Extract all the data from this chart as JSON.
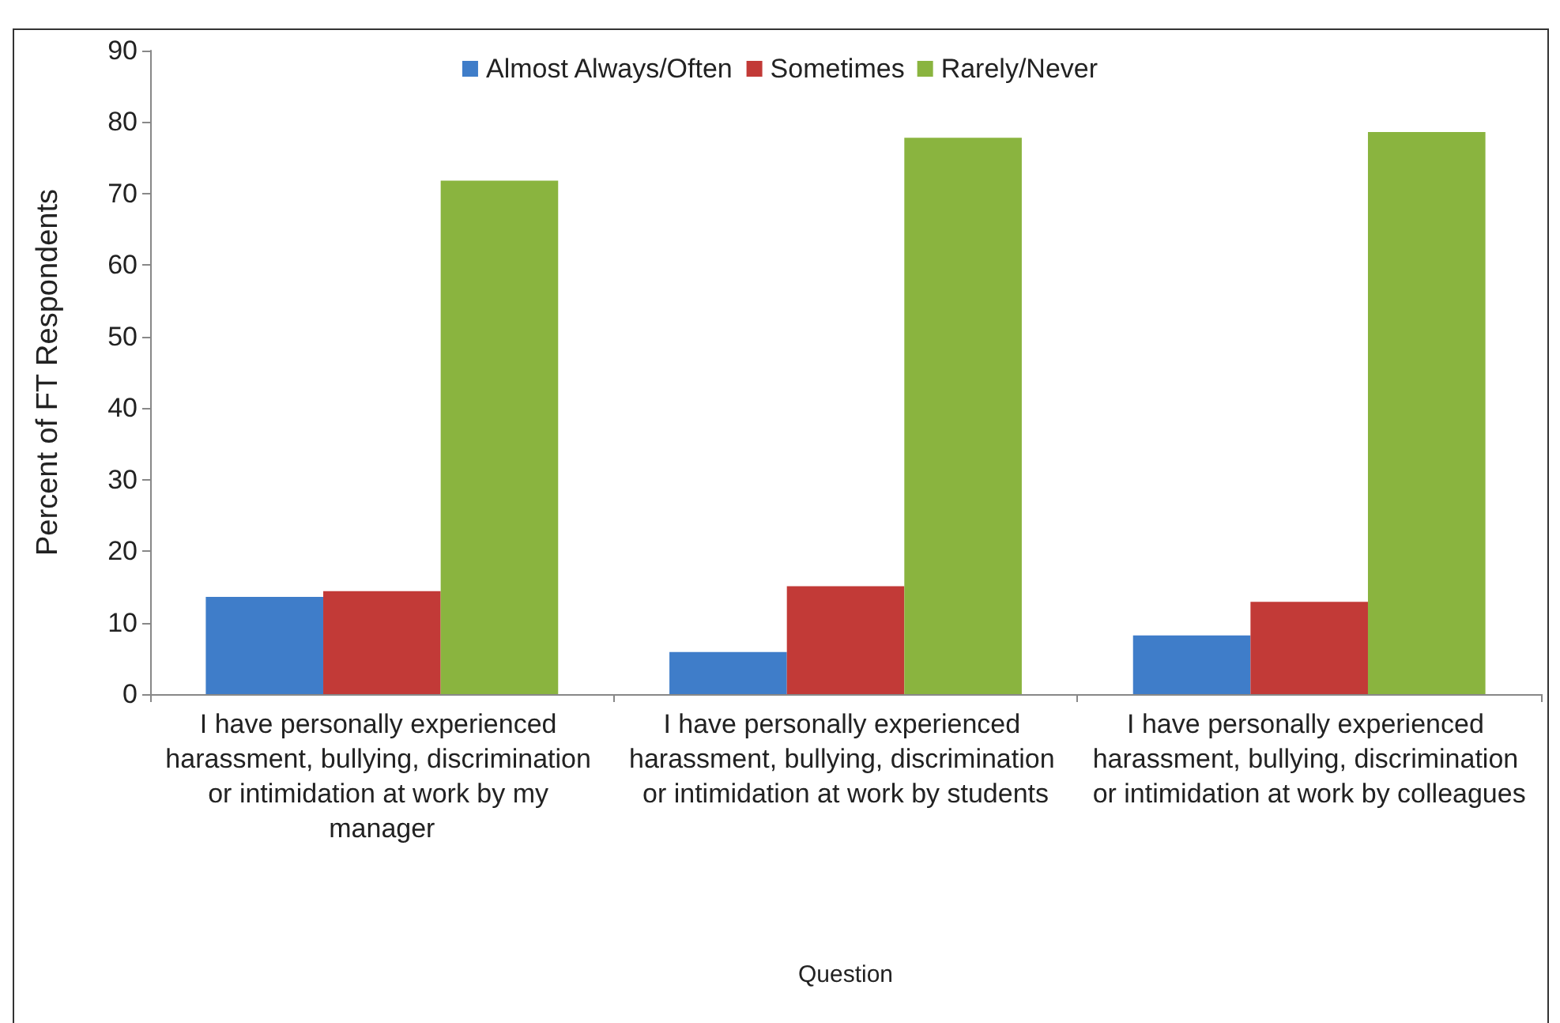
{
  "chart_data": {
    "type": "bar",
    "xlabel": "Question",
    "ylabel": "Percent of FT Respondents",
    "categories": [
      "I have personally experienced harassment, bullying, discrimination or intimidation at work by my manager",
      "I have personally experienced harassment, bullying, discrimination or intimidation at work by students",
      "I have personally experienced harassment, bullying, discrimination or intimidation at work by colleagues"
    ],
    "series": [
      {
        "name": "Almost Always/Often",
        "color": "#3f7dc9",
        "values": [
          13.6,
          5.9,
          8.2
        ]
      },
      {
        "name": "Sometimes",
        "color": "#c23a37",
        "values": [
          14.4,
          15.1,
          12.9
        ]
      },
      {
        "name": "Rarely/Never",
        "color": "#8ab43f",
        "values": [
          71.8,
          77.8,
          78.6
        ]
      }
    ],
    "ylim": [
      0,
      90
    ],
    "yticks": [
      0,
      10,
      20,
      30,
      40,
      50,
      60,
      70,
      80,
      90
    ],
    "grid": false,
    "legend": "top"
  }
}
